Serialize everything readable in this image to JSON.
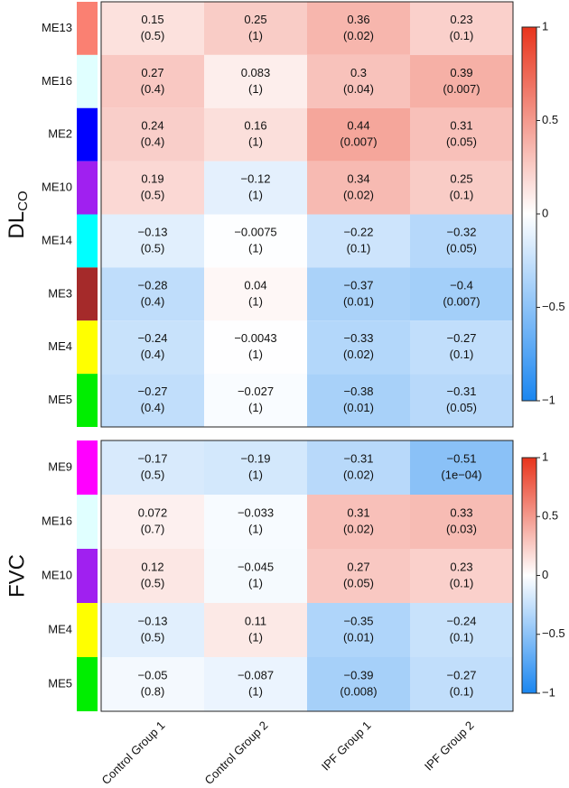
{
  "chart_data": [
    {
      "type": "heatmap",
      "ylabel": "DL",
      "ylabel_sub": "CO",
      "colormap": [
        "#1a86f0",
        "#ffffff",
        "#e8341c"
      ],
      "ylim": [
        -1,
        1
      ],
      "yticks": [
        1,
        0.5,
        0,
        {
          "value": -0.5,
          "label": "−0.5"
        },
        {
          "value": -1,
          "label": "−1"
        }
      ],
      "series": [
        {
          "name": "ME13",
          "color": "#fa8072",
          "values": [
            0.15,
            0.25,
            0.36,
            0.23
          ],
          "value_labels": [
            "0.15",
            "0.25",
            "0.36",
            "0.23"
          ],
          "p_values": [
            0.5,
            1,
            0.02,
            0.1
          ],
          "p_value_labels": [
            "(0.5)",
            "(1)",
            "(0.02)",
            "(0.1)"
          ]
        },
        {
          "name": "ME16",
          "color": "#e0ffff",
          "values": [
            0.27,
            0.083,
            0.3,
            0.39
          ],
          "value_labels": [
            "0.27",
            "0.083",
            "0.3",
            "0.39"
          ],
          "p_values": [
            0.4,
            1,
            0.04,
            0.007
          ],
          "p_value_labels": [
            "(0.4)",
            "(1)",
            "(0.04)",
            "(0.007)"
          ]
        },
        {
          "name": "ME2",
          "color": "#0000ff",
          "values": [
            0.24,
            0.16,
            0.44,
            0.31
          ],
          "value_labels": [
            "0.24",
            "0.16",
            "0.44",
            "0.31"
          ],
          "p_values": [
            0.4,
            1,
            0.007,
            0.05
          ],
          "p_value_labels": [
            "(0.4)",
            "(1)",
            "(0.007)",
            "(0.05)"
          ]
        },
        {
          "name": "ME10",
          "color": "#a020f0",
          "values": [
            0.19,
            -0.12,
            0.34,
            0.25
          ],
          "value_labels": [
            "0.19",
            "−0.12",
            "0.34",
            "0.25"
          ],
          "p_values": [
            0.5,
            1,
            0.02,
            0.1
          ],
          "p_value_labels": [
            "(0.5)",
            "(1)",
            "(0.02)",
            "(0.1)"
          ]
        },
        {
          "name": "ME14",
          "color": "#00ffff",
          "values": [
            -0.13,
            -0.0075,
            -0.22,
            -0.32
          ],
          "value_labels": [
            "−0.13",
            "−0.0075",
            "−0.22",
            "−0.32"
          ],
          "p_values": [
            0.5,
            1,
            0.1,
            0.05
          ],
          "p_value_labels": [
            "(0.5)",
            "(1)",
            "(0.1)",
            "(0.05)"
          ]
        },
        {
          "name": "ME3",
          "color": "#a52a2a",
          "values": [
            -0.28,
            0.04,
            -0.37,
            -0.4
          ],
          "value_labels": [
            "−0.28",
            "0.04",
            "−0.37",
            "−0.4"
          ],
          "p_values": [
            0.4,
            1,
            0.01,
            0.007
          ],
          "p_value_labels": [
            "(0.4)",
            "(1)",
            "(0.01)",
            "(0.007)"
          ]
        },
        {
          "name": "ME4",
          "color": "#ffff00",
          "values": [
            -0.24,
            -0.0043,
            -0.33,
            -0.27
          ],
          "value_labels": [
            "−0.24",
            "−0.0043",
            "−0.33",
            "−0.27"
          ],
          "p_values": [
            0.4,
            1,
            0.02,
            0.1
          ],
          "p_value_labels": [
            "(0.4)",
            "(1)",
            "(0.02)",
            "(0.1)"
          ]
        },
        {
          "name": "ME5",
          "color": "#00ee00",
          "values": [
            -0.27,
            -0.027,
            -0.38,
            -0.31
          ],
          "value_labels": [
            "−0.27",
            "−0.027",
            "−0.38",
            "−0.31"
          ],
          "p_values": [
            0.4,
            1,
            0.01,
            0.05
          ],
          "p_value_labels": [
            "(0.4)",
            "(1)",
            "(0.01)",
            "(0.05)"
          ]
        }
      ]
    },
    {
      "type": "heatmap",
      "ylabel": "FVC",
      "colormap": [
        "#1a86f0",
        "#ffffff",
        "#e8341c"
      ],
      "ylim": [
        -1,
        1
      ],
      "yticks": [
        1,
        0.5,
        0,
        {
          "value": -0.5,
          "label": "−0.5"
        },
        {
          "value": -1,
          "label": "−1"
        }
      ],
      "categories": [
        "Control Group 1",
        "Control Group 2",
        "IPF Group 1",
        "IPF Group 2"
      ],
      "series": [
        {
          "name": "ME9",
          "color": "#ff00ff",
          "values": [
            -0.17,
            -0.19,
            -0.31,
            -0.51
          ],
          "value_labels": [
            "−0.17",
            "−0.19",
            "−0.31",
            "−0.51"
          ],
          "p_values": [
            0.5,
            1,
            0.02,
            0.0001
          ],
          "p_value_labels": [
            "(0.5)",
            "(1)",
            "(0.02)",
            "(1e−04)"
          ]
        },
        {
          "name": "ME16",
          "color": "#e0ffff",
          "values": [
            0.072,
            -0.033,
            0.31,
            0.33
          ],
          "value_labels": [
            "0.072",
            "−0.033",
            "0.31",
            "0.33"
          ],
          "p_values": [
            0.7,
            1,
            0.02,
            0.03
          ],
          "p_value_labels": [
            "(0.7)",
            "(1)",
            "(0.02)",
            "(0.03)"
          ]
        },
        {
          "name": "ME10",
          "color": "#a020f0",
          "values": [
            0.12,
            -0.045,
            0.27,
            0.23
          ],
          "value_labels": [
            "0.12",
            "−0.045",
            "0.27",
            "0.23"
          ],
          "p_values": [
            0.5,
            1,
            0.05,
            0.1
          ],
          "p_value_labels": [
            "(0.5)",
            "(1)",
            "(0.05)",
            "(0.1)"
          ]
        },
        {
          "name": "ME4",
          "color": "#ffff00",
          "values": [
            -0.13,
            0.11,
            -0.35,
            -0.24
          ],
          "value_labels": [
            "−0.13",
            "0.11",
            "−0.35",
            "−0.24"
          ],
          "p_values": [
            0.5,
            1,
            0.01,
            0.1
          ],
          "p_value_labels": [
            "(0.5)",
            "(1)",
            "(0.01)",
            "(0.1)"
          ]
        },
        {
          "name": "ME5",
          "color": "#00ee00",
          "values": [
            -0.05,
            -0.087,
            -0.39,
            -0.27
          ],
          "value_labels": [
            "−0.05",
            "−0.087",
            "−0.39",
            "−0.27"
          ],
          "p_values": [
            0.8,
            1,
            0.008,
            0.1
          ],
          "p_value_labels": [
            "(0.8)",
            "(1)",
            "(0.008)",
            "(0.1)"
          ]
        }
      ]
    }
  ]
}
